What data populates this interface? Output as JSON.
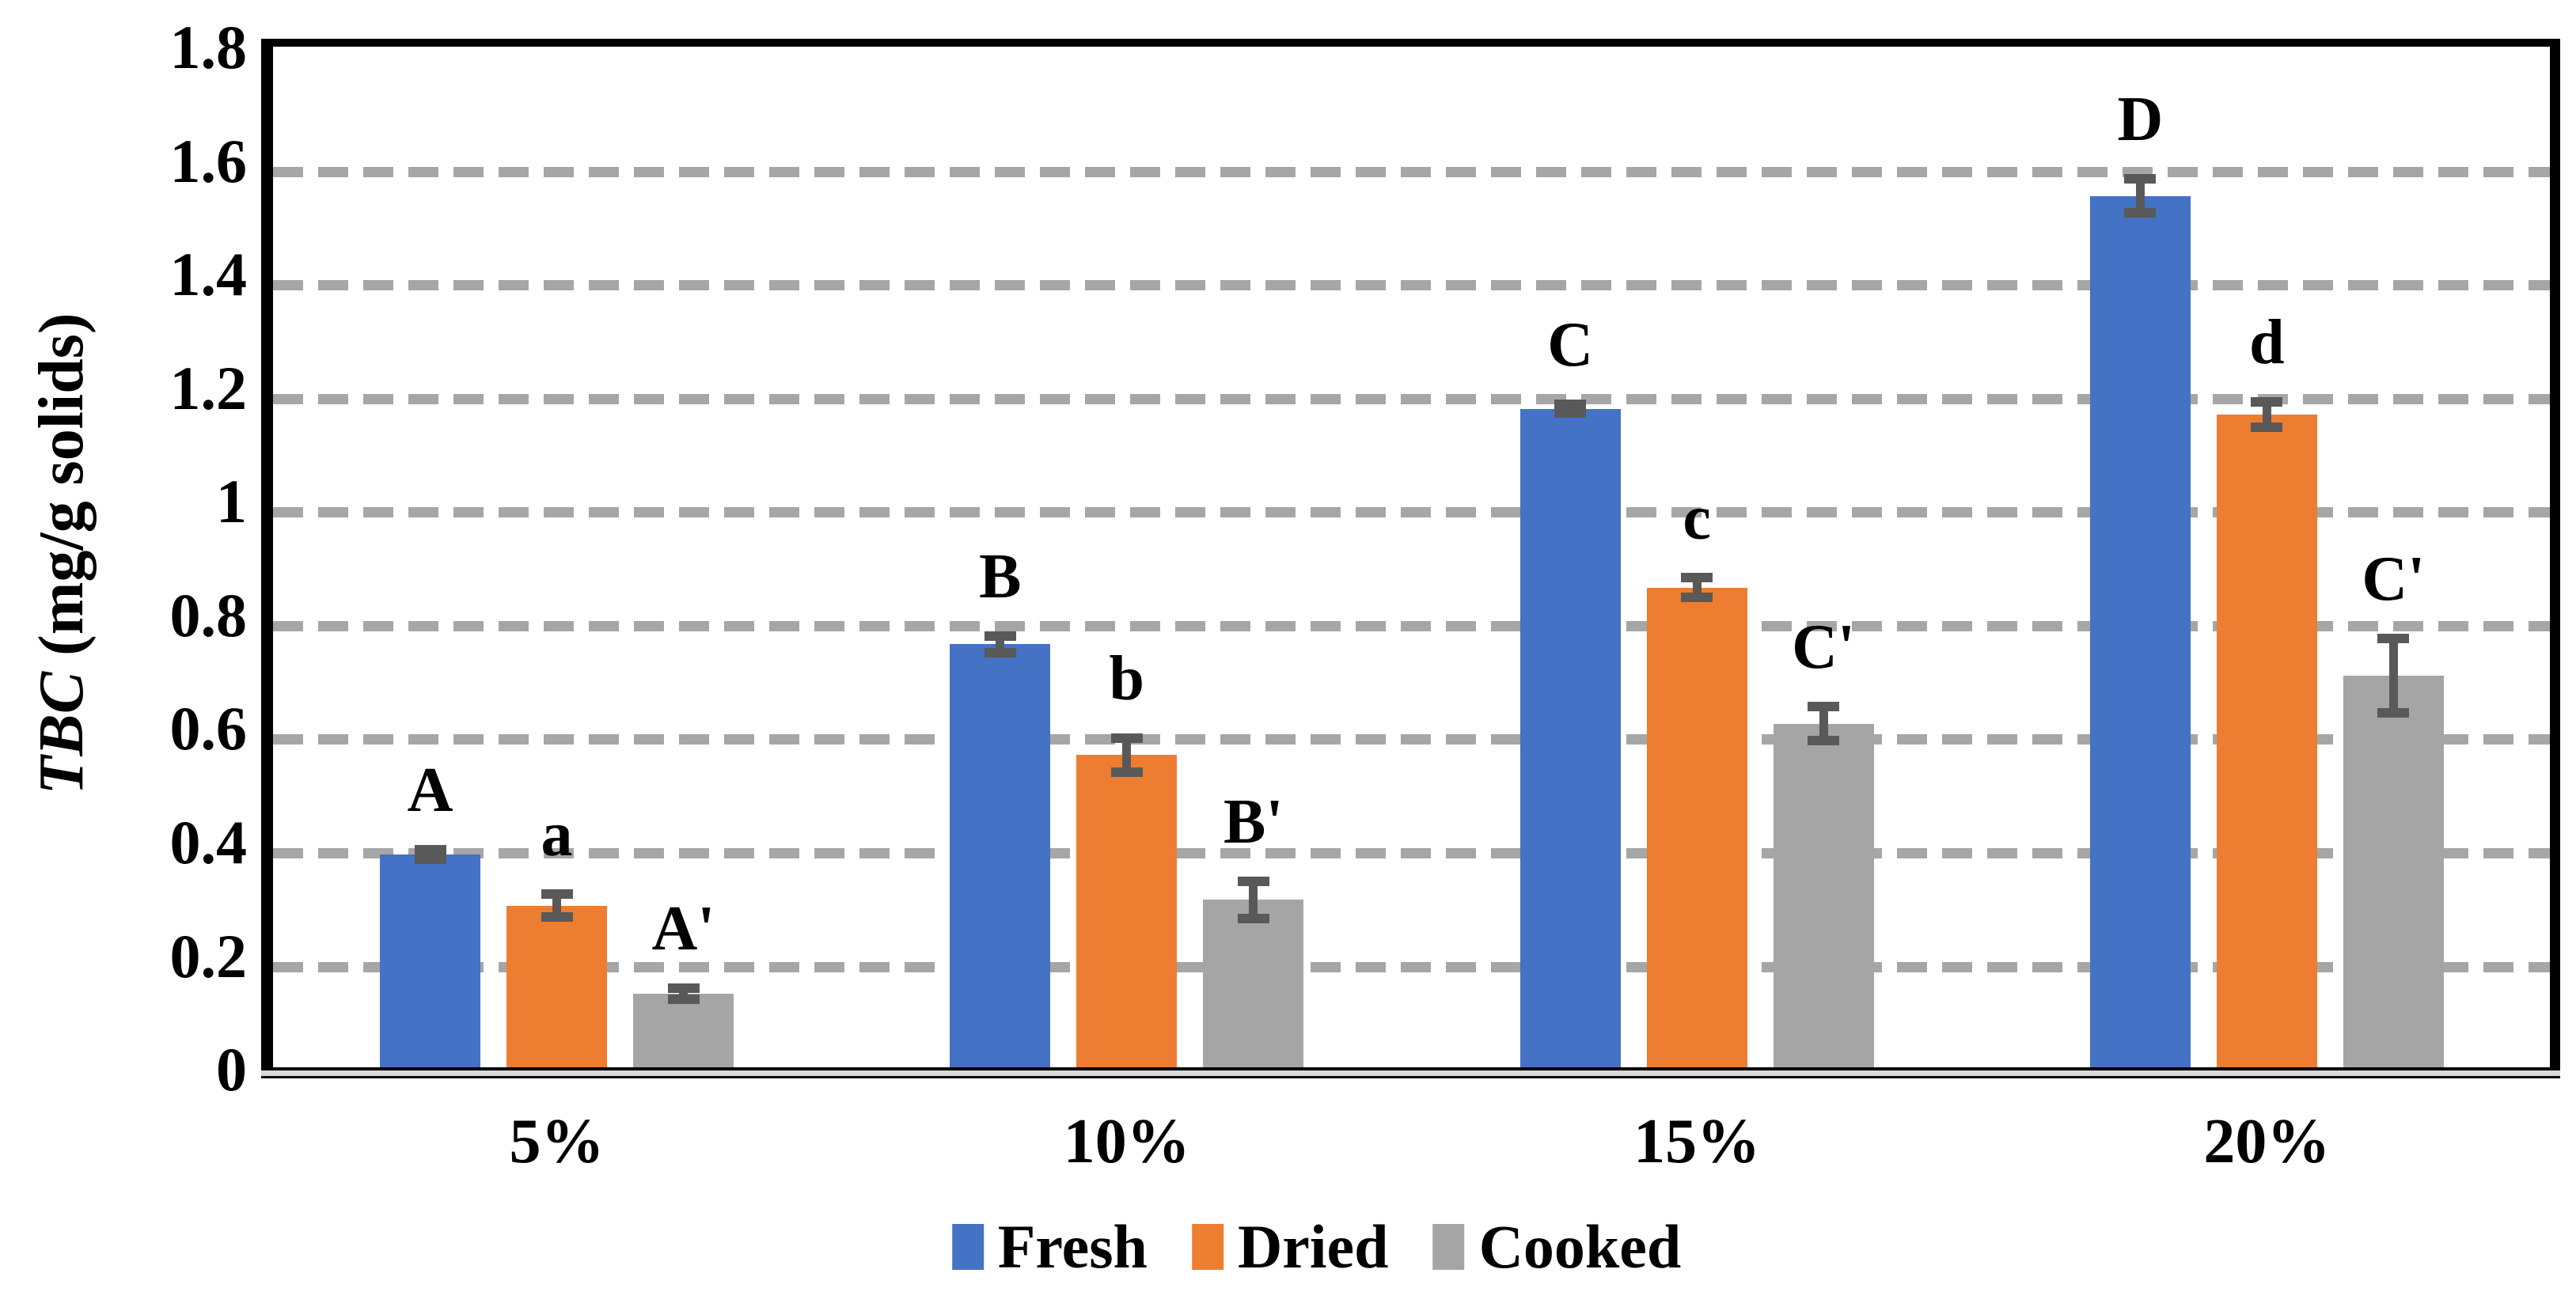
{
  "chart_data": {
    "type": "bar",
    "title": "",
    "categories": [
      "5%",
      "10%",
      "15%",
      "20%"
    ],
    "series": [
      {
        "name": "Fresh",
        "color": "#4472C4",
        "values": [
          0.375,
          0.745,
          1.16,
          1.535
        ],
        "errors": [
          0.008,
          0.015,
          0.008,
          0.03
        ],
        "letters": [
          "A",
          "B",
          "C",
          "D"
        ]
      },
      {
        "name": "Dried",
        "color": "#ED7D31",
        "values": [
          0.285,
          0.55,
          0.845,
          1.15
        ],
        "errors": [
          0.02,
          0.03,
          0.017,
          0.022
        ],
        "letters": [
          "a",
          "b",
          "c",
          "d"
        ]
      },
      {
        "name": "Cooked",
        "color": "#A5A5A5",
        "values": [
          0.13,
          0.295,
          0.605,
          0.69
        ],
        "errors": [
          0.01,
          0.033,
          0.03,
          0.065
        ],
        "letters": [
          "A'",
          "B'",
          "C'",
          "C'"
        ]
      }
    ],
    "xlabel": "",
    "ylabel_italic": "TBC",
    "ylabel_rest": " (mg/g solids)",
    "ylim": [
      0,
      1.8
    ],
    "ytick_step": 0.2,
    "yticks": [
      "1.8",
      "1.6",
      "1.4",
      "1.2",
      "1",
      "0.8",
      "0.6",
      "0.4",
      "0.2",
      "0"
    ],
    "grid": "horizontal-dashed",
    "legend_position": "bottom",
    "colors": {
      "gridline": "#A6A6A6",
      "error_bar": "#595959",
      "axis_shadow": "#D9D9D9",
      "plot_border": "#000000",
      "background": "#FFFFFF"
    }
  }
}
